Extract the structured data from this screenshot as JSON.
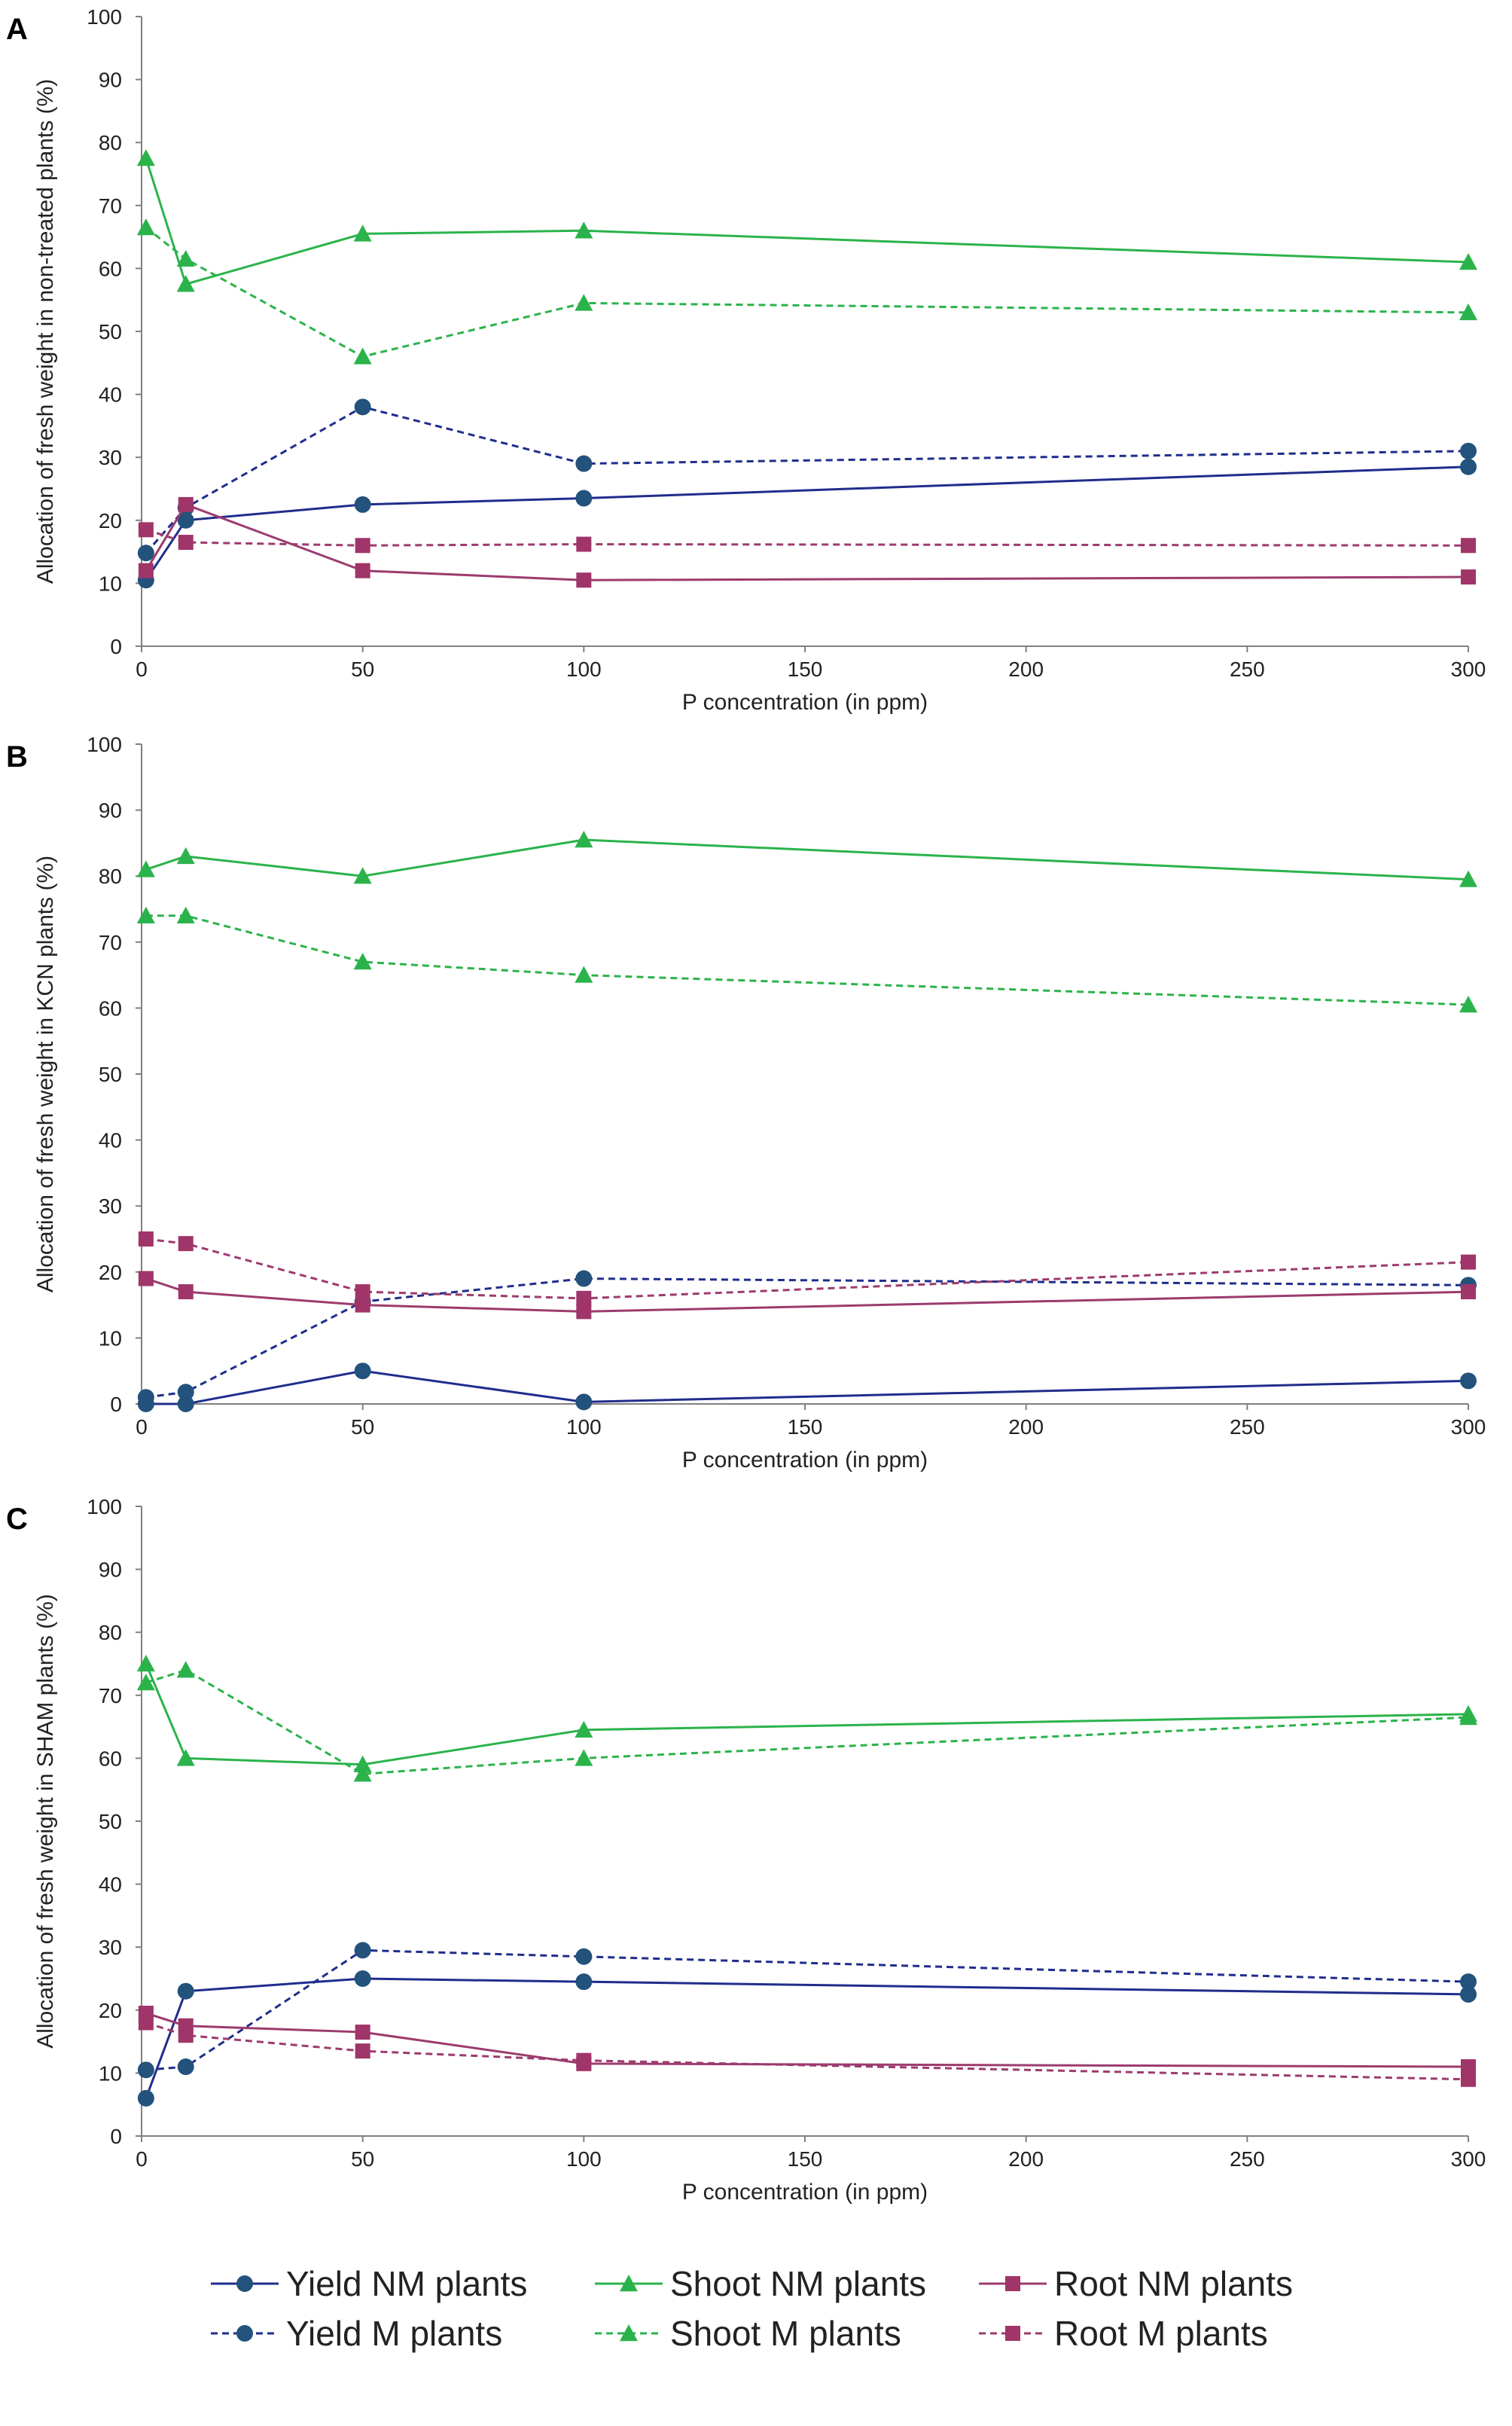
{
  "series_styles": [
    {
      "key": "yield_nm",
      "name": "Yield NM plants",
      "color": "#1f2d8c",
      "marker_color": "#23527c",
      "marker": "circle",
      "dashed": false
    },
    {
      "key": "yield_m",
      "name": "Yield M plants",
      "color": "#1f2d8c",
      "marker_color": "#23527c",
      "marker": "circle",
      "dashed": true
    },
    {
      "key": "shoot_nm",
      "name": "Shoot NM plants",
      "color": "#2bb34b",
      "marker_color": "#2bb34b",
      "marker": "triangle",
      "dashed": false
    },
    {
      "key": "shoot_m",
      "name": "Shoot M plants",
      "color": "#2bb34b",
      "marker_color": "#2bb34b",
      "marker": "triangle",
      "dashed": true
    },
    {
      "key": "root_nm",
      "name": "Root NM plants",
      "color": "#9c3b6e",
      "marker_color": "#a0356a",
      "marker": "square",
      "dashed": false
    },
    {
      "key": "root_m",
      "name": "Root M plants",
      "color": "#9c3b6e",
      "marker_color": "#a0356a",
      "marker": "square",
      "dashed": true
    }
  ],
  "chart_data": [
    {
      "type": "line",
      "panel": "A",
      "title": "",
      "xlabel": "P concentration (in ppm)",
      "ylabel": "Allocation of fresh weight in non-treated plants (%)",
      "xlim": [
        0,
        300
      ],
      "ylim": [
        0,
        100
      ],
      "xticks": [
        0,
        50,
        100,
        150,
        200,
        250,
        300
      ],
      "yticks": [
        0,
        10,
        20,
        30,
        40,
        50,
        60,
        70,
        80,
        90,
        100
      ],
      "x": [
        1,
        10,
        50,
        100,
        300
      ],
      "series": [
        {
          "key": "yield_nm",
          "name": "Yield NM plants",
          "values": [
            10.5,
            20,
            22.5,
            23.5,
            28.5
          ]
        },
        {
          "key": "yield_m",
          "name": "Yield M plants",
          "values": [
            14.8,
            22,
            38,
            29,
            31
          ]
        },
        {
          "key": "shoot_nm",
          "name": "Shoot NM plants",
          "values": [
            77.5,
            57.5,
            65.5,
            66,
            61
          ]
        },
        {
          "key": "shoot_m",
          "name": "Shoot M plants",
          "values": [
            66.5,
            61.5,
            46,
            54.5,
            53
          ]
        },
        {
          "key": "root_nm",
          "name": "Root NM plants",
          "values": [
            12,
            22.5,
            12,
            10.5,
            11
          ]
        },
        {
          "key": "root_m",
          "name": "Root M plants",
          "values": [
            18.5,
            16.5,
            16,
            16.2,
            16
          ]
        }
      ]
    },
    {
      "type": "line",
      "panel": "B",
      "title": "",
      "xlabel": "P concentration (in ppm)",
      "ylabel": "Allocation of fresh weight in KCN plants (%)",
      "xlim": [
        0,
        300
      ],
      "ylim": [
        0,
        100
      ],
      "xticks": [
        0,
        50,
        100,
        150,
        200,
        250,
        300
      ],
      "yticks": [
        0,
        10,
        20,
        30,
        40,
        50,
        60,
        70,
        80,
        90,
        100
      ],
      "x": [
        1,
        10,
        50,
        100,
        300
      ],
      "series": [
        {
          "key": "yield_nm",
          "name": "Yield NM plants",
          "values": [
            0,
            0,
            5,
            0.3,
            3.5
          ]
        },
        {
          "key": "yield_m",
          "name": "Yield M plants",
          "values": [
            1,
            1.8,
            15.5,
            19,
            18
          ]
        },
        {
          "key": "shoot_nm",
          "name": "Shoot NM plants",
          "values": [
            81,
            83,
            80,
            85.5,
            79.5
          ]
        },
        {
          "key": "shoot_m",
          "name": "Shoot M plants",
          "values": [
            74,
            74,
            67,
            65,
            60.5
          ]
        },
        {
          "key": "root_nm",
          "name": "Root NM plants",
          "values": [
            19,
            17,
            15,
            14,
            17
          ]
        },
        {
          "key": "root_m",
          "name": "Root M plants",
          "values": [
            25,
            24.3,
            17,
            16,
            21.5
          ]
        }
      ]
    },
    {
      "type": "line",
      "panel": "C",
      "title": "",
      "xlabel": "P concentration (in ppm)",
      "ylabel": "Allocation of fresh weight in SHAM plants (%)",
      "xlim": [
        0,
        300
      ],
      "ylim": [
        0,
        100
      ],
      "xticks": [
        0,
        50,
        100,
        150,
        200,
        250,
        300
      ],
      "yticks": [
        0,
        10,
        20,
        30,
        40,
        50,
        60,
        70,
        80,
        90,
        100
      ],
      "x": [
        1,
        10,
        50,
        100,
        300
      ],
      "series": [
        {
          "key": "yield_nm",
          "name": "Yield NM plants",
          "values": [
            6,
            23,
            25,
            24.5,
            22.5
          ]
        },
        {
          "key": "yield_m",
          "name": "Yield M plants",
          "values": [
            10.5,
            11,
            29.5,
            28.5,
            24.5
          ]
        },
        {
          "key": "shoot_nm",
          "name": "Shoot NM plants",
          "values": [
            75,
            60,
            59,
            64.5,
            67
          ]
        },
        {
          "key": "shoot_m",
          "name": "Shoot M plants",
          "values": [
            72,
            74,
            57.5,
            60,
            66.5
          ]
        },
        {
          "key": "root_nm",
          "name": "Root NM plants",
          "values": [
            19.5,
            17.5,
            16.5,
            11.5,
            11
          ]
        },
        {
          "key": "root_m",
          "name": "Root M plants",
          "values": [
            18,
            16,
            13.5,
            12,
            9
          ]
        }
      ]
    }
  ],
  "legend": {
    "position": "bottom",
    "items": [
      "Yield NM plants",
      "Yield M plants",
      "Shoot NM plants",
      "Shoot M plants",
      "Root NM plants",
      "Root M plants"
    ]
  }
}
